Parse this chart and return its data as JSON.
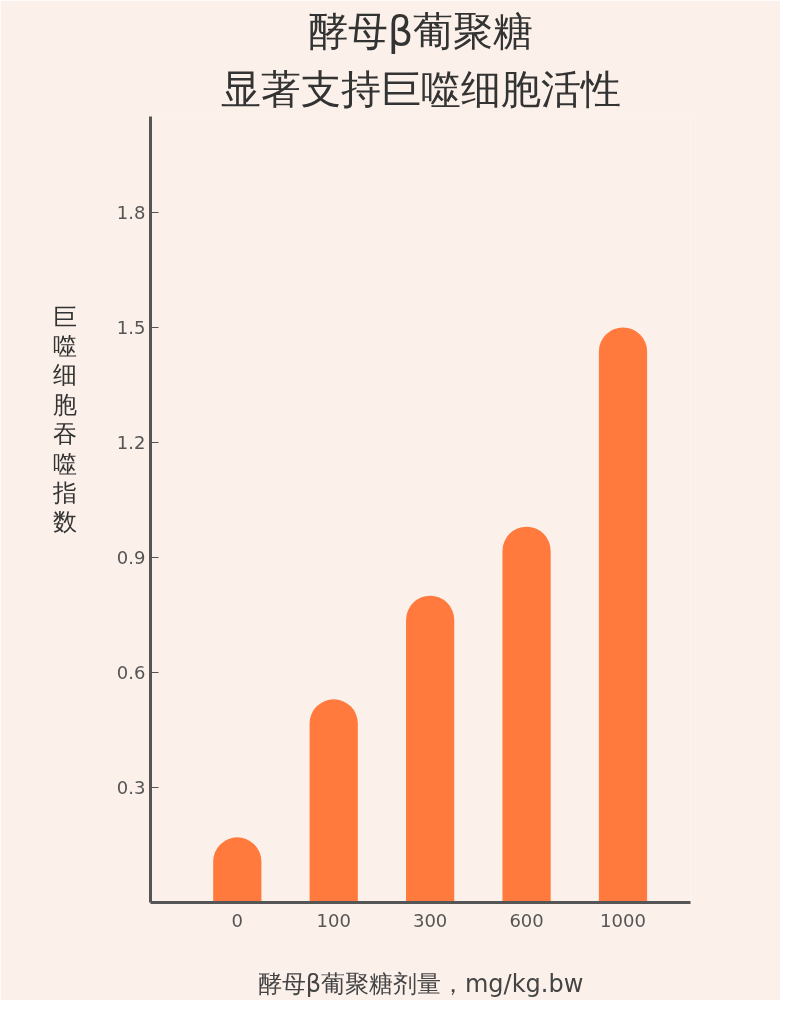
{
  "chart_data": {
    "type": "bar",
    "title": "酵母β葡聚糖",
    "subtitle": "显著支持巨噬细胞活性",
    "xlabel": "酵母β葡聚糖剂量，mg/kg.bw",
    "ylabel": "巨噬细胞吞噬指数",
    "categories": [
      "0",
      "100",
      "300",
      "600",
      "1000"
    ],
    "values": [
      0.17,
      0.53,
      0.8,
      0.98,
      1.5
    ],
    "color": "#ff7a3c",
    "ylim": [
      0,
      2.05
    ],
    "yticks": [
      0.3,
      0.6,
      0.9,
      1.2,
      1.5,
      1.8
    ],
    "grid": false
  }
}
